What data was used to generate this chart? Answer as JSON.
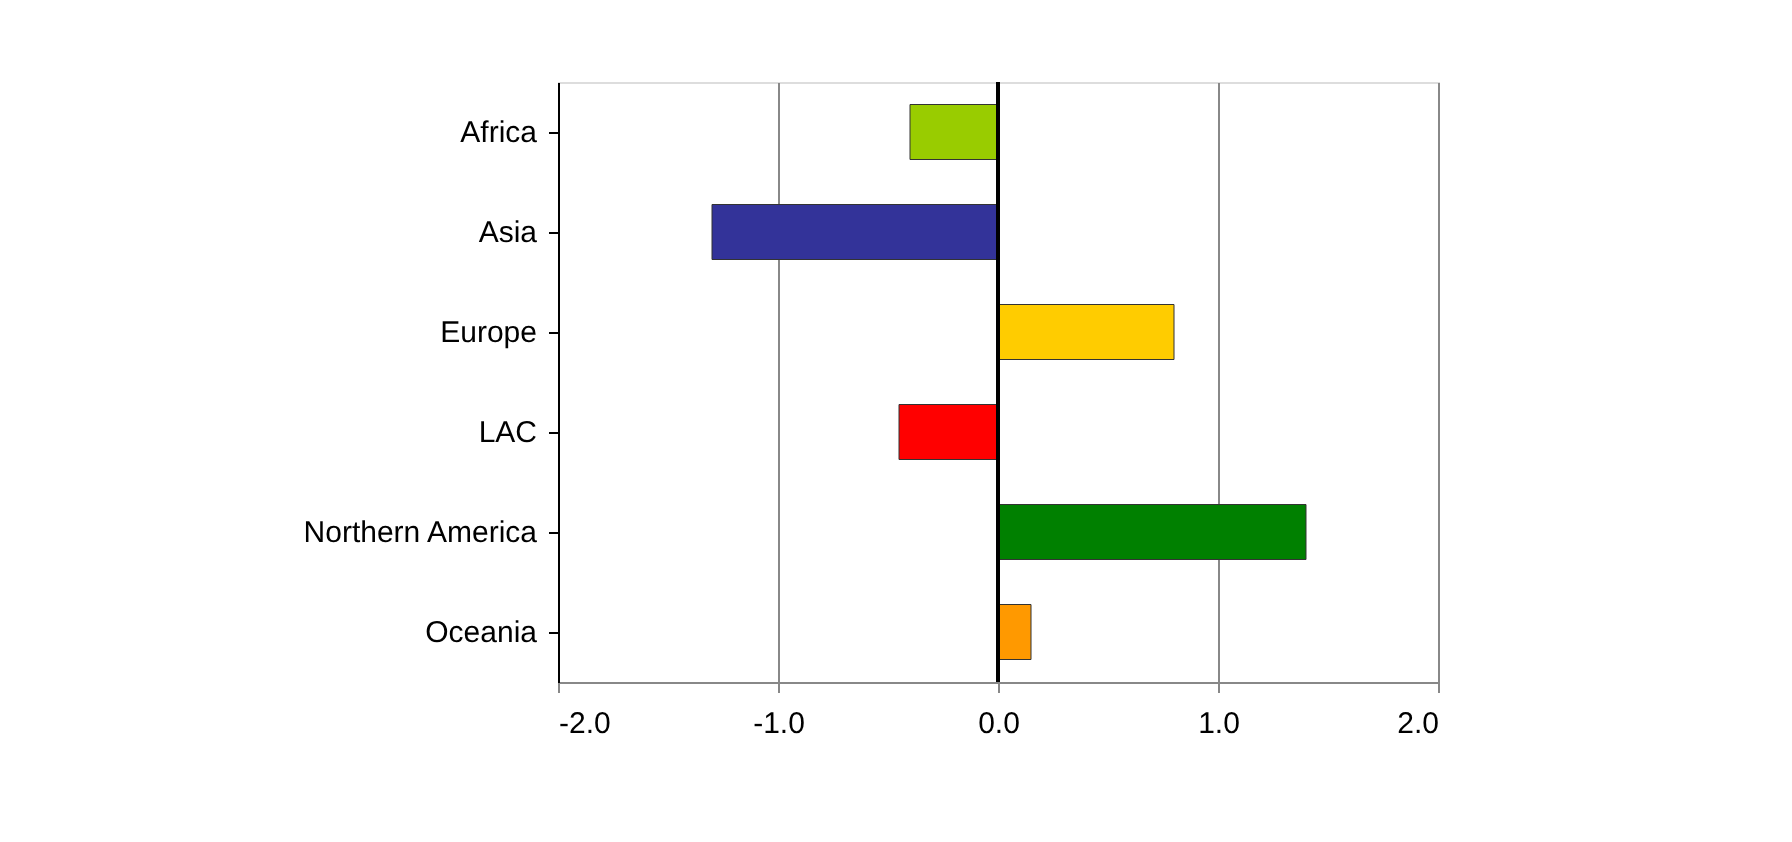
{
  "chart_data": {
    "type": "bar",
    "orientation": "horizontal",
    "categories": [
      "Africa",
      "Asia",
      "Europe",
      "LAC",
      "Northern America",
      "Oceania"
    ],
    "values": [
      -0.4,
      -1.3,
      0.8,
      -0.45,
      1.4,
      0.15
    ],
    "colors": [
      "#99cc00",
      "#333399",
      "#ffcc00",
      "#ff0000",
      "#008000",
      "#ff9900"
    ],
    "xlim": [
      -2.0,
      2.0
    ],
    "xticks": [
      {
        "value": -2,
        "label": "-2.0"
      },
      {
        "value": -1,
        "label": "-1.0"
      },
      {
        "value": 0,
        "label": "0.0"
      },
      {
        "value": 1,
        "label": "1.0"
      },
      {
        "value": 2,
        "label": "2.0"
      }
    ],
    "grid": "x",
    "ref_lines": [
      {
        "axis": "x",
        "value": 0,
        "color": "#000000"
      }
    ]
  }
}
